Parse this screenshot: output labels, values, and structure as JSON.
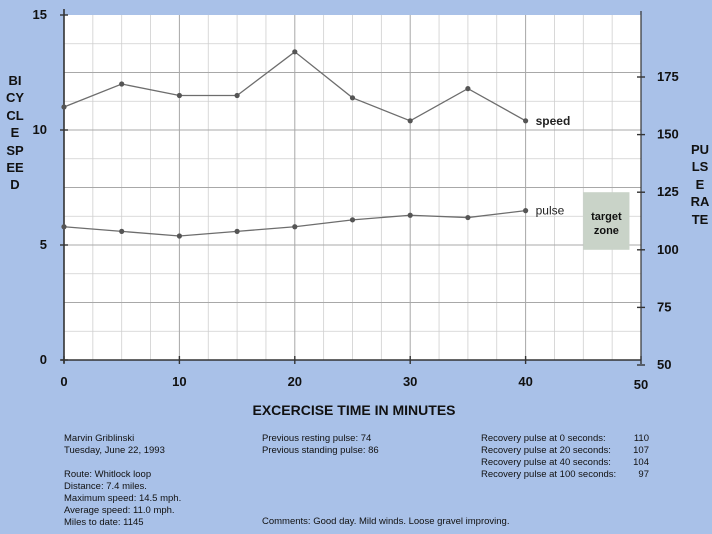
{
  "chart_data": {
    "type": "line",
    "xlabel": "EXCERCISE  TIME  IN  MINUTES",
    "ylabel_left": "BICYCLE SPEED",
    "ylabel_right": "PULSE RATE",
    "xlim": [
      0,
      50
    ],
    "ylim_left": [
      0,
      15
    ],
    "ylim_right": [
      50,
      175
    ],
    "x_ticks": [
      0,
      10,
      20,
      30,
      40,
      50
    ],
    "y_left_ticks": [
      0,
      5,
      10,
      15
    ],
    "y_right_ticks": [
      50,
      75,
      100,
      125,
      150,
      175
    ],
    "grid": true,
    "series": [
      {
        "name": "speed",
        "axis": "left",
        "x": [
          0,
          5,
          10,
          15,
          20,
          25,
          30,
          35,
          40
        ],
        "values": [
          11.0,
          12.0,
          11.5,
          11.5,
          13.4,
          11.4,
          10.4,
          11.8,
          10.4
        ]
      },
      {
        "name": "pulse",
        "axis": "right",
        "x": [
          0,
          5,
          10,
          15,
          20,
          25,
          30,
          35,
          40
        ],
        "values": [
          110,
          108,
          106,
          108,
          110,
          113,
          115,
          114,
          117
        ]
      }
    ],
    "annotations": [
      {
        "text": [
          "target",
          "zone"
        ],
        "x_range": [
          45,
          49
        ],
        "y_range_right": [
          100,
          125
        ],
        "color": "#c9d3c8"
      }
    ]
  },
  "notes": {
    "left": [
      "Marvin Griblinski",
      "Tuesday, June 22, 1993",
      "",
      "Route: Whitlock loop",
      "Distance: 7.4 miles.",
      "Maximum speed: 14.5 mph.",
      "Average speed: 11.0 mph.",
      "Miles to date: 1145"
    ],
    "middle": [
      "Previous resting pulse: 74",
      "Previous standing pulse: 86"
    ],
    "recovery": [
      {
        "label": "Recovery pulse at 0 seconds:",
        "value": "110"
      },
      {
        "label": "Recovery pulse at 20 seconds:",
        "value": "107"
      },
      {
        "label": "Recovery pulse at 40 seconds:",
        "value": "104"
      },
      {
        "label": "Recovery pulse at 100 seconds:",
        "value": "97"
      }
    ],
    "comments": "Comments:  Good day. Mild winds. Loose gravel improving."
  }
}
